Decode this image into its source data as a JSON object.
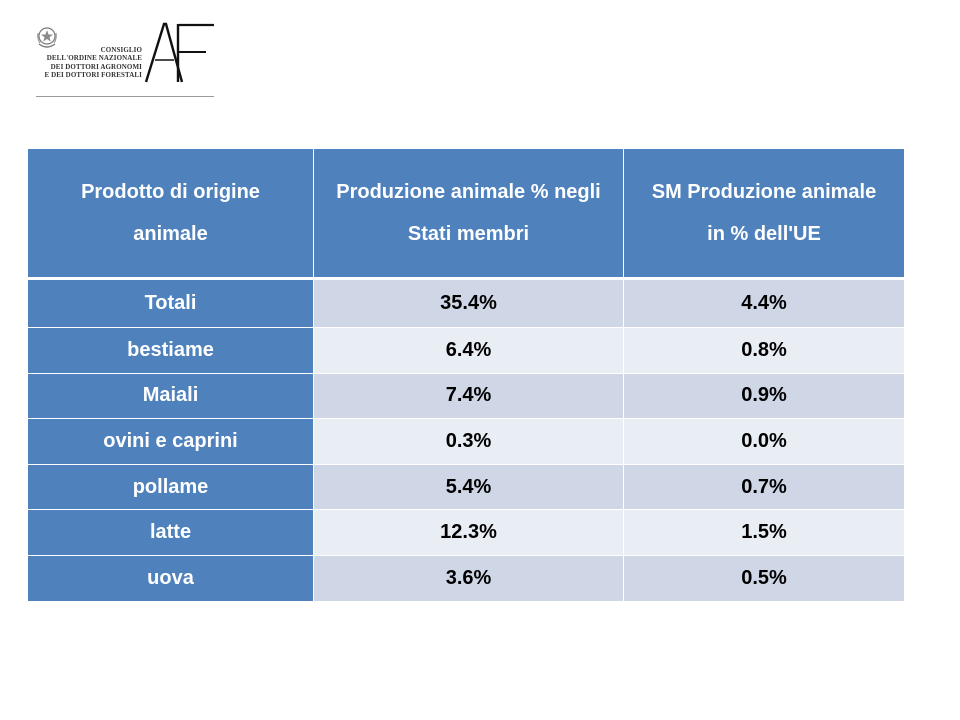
{
  "logo": {
    "emblem_icon": "italian-republic-emblem-icon",
    "monogram_icon": "af-monogram-icon",
    "org_lines": [
      "CONSIGLIO",
      "DELL'ORDINE NAZIONALE",
      "DEI DOTTORI AGRONOMI",
      "E DEI DOTTORI FORESTALI"
    ]
  },
  "table": {
    "headers": [
      [
        "Prodotto di origine",
        "animale"
      ],
      [
        "Produzione animale % negli",
        "Stati membri"
      ],
      [
        "SM Produzione animale",
        "in % dell'UE"
      ]
    ],
    "rows": [
      {
        "product": "Totali",
        "share_member_states": "35.4%",
        "share_eu": "4.4%"
      },
      {
        "product": "bestiame",
        "share_member_states": "6.4%",
        "share_eu": "0.8%"
      },
      {
        "product": "Maiali",
        "share_member_states": "7.4%",
        "share_eu": "0.9%"
      },
      {
        "product": "ovini e caprini",
        "share_member_states": "0.3%",
        "share_eu": "0.0%"
      },
      {
        "product": "pollame",
        "share_member_states": "5.4%",
        "share_eu": "0.7%"
      },
      {
        "product": "latte",
        "share_member_states": "12.3%",
        "share_eu": "1.5%"
      },
      {
        "product": "uova",
        "share_member_states": "3.6%",
        "share_eu": "0.5%"
      }
    ]
  },
  "colors": {
    "header_blue": "#4f81bd",
    "row_band_dark": "#cfd7e7",
    "row_band_light": "#e9edf4"
  }
}
